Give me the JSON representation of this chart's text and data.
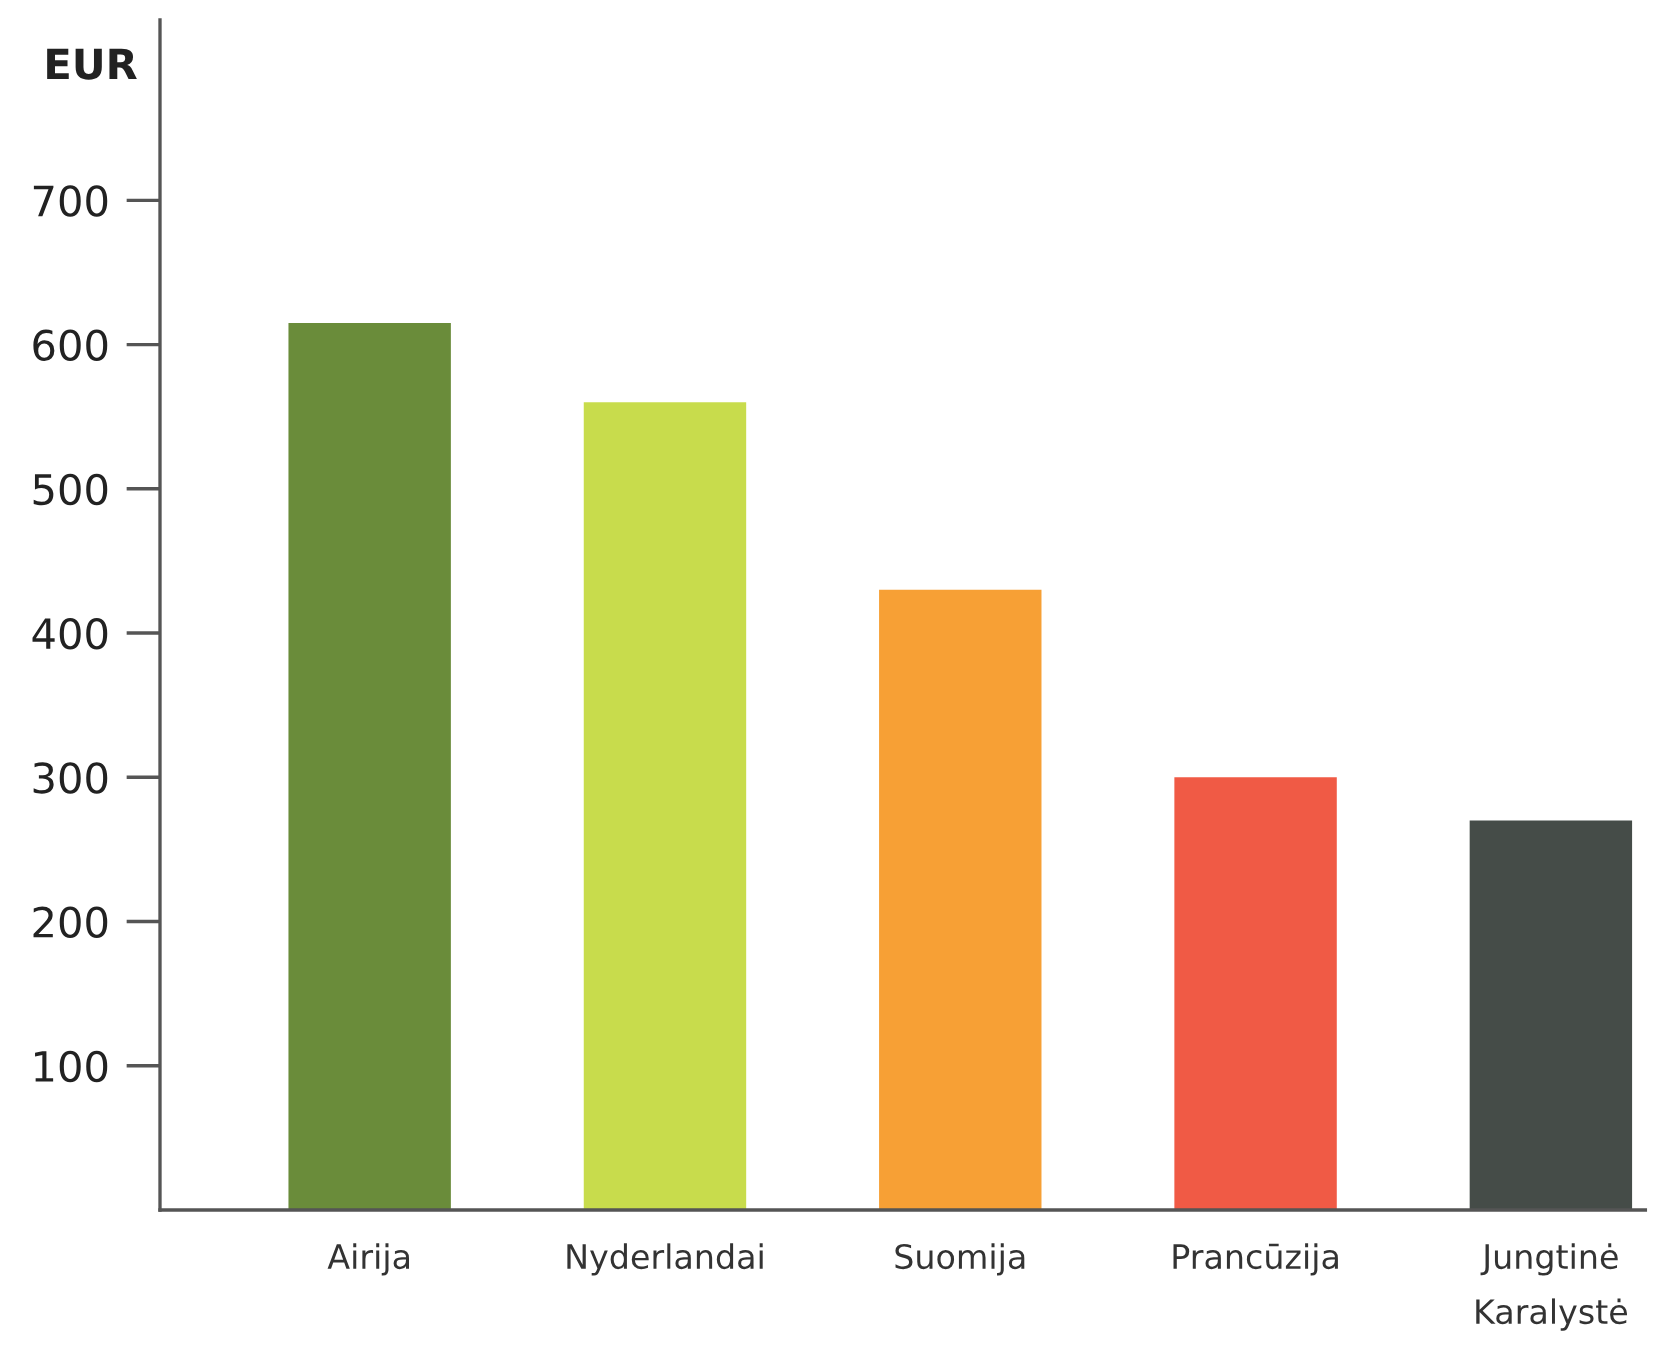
{
  "chart_data": {
    "type": "bar",
    "ylabel": "EUR",
    "categories": [
      "Airija",
      "Nyderlandai",
      "Suomija",
      "Prancūzija",
      "Jungtinė\nKaralystė"
    ],
    "values": [
      615,
      560,
      430,
      300,
      270
    ],
    "colors": [
      "#6a8c3a",
      "#c8dc4c",
      "#f7a035",
      "#f05a45",
      "#454c48"
    ],
    "ylim": [
      0,
      825
    ],
    "yticks": [
      100,
      200,
      300,
      400,
      500,
      600,
      700
    ],
    "grid": false,
    "legend": false
  }
}
